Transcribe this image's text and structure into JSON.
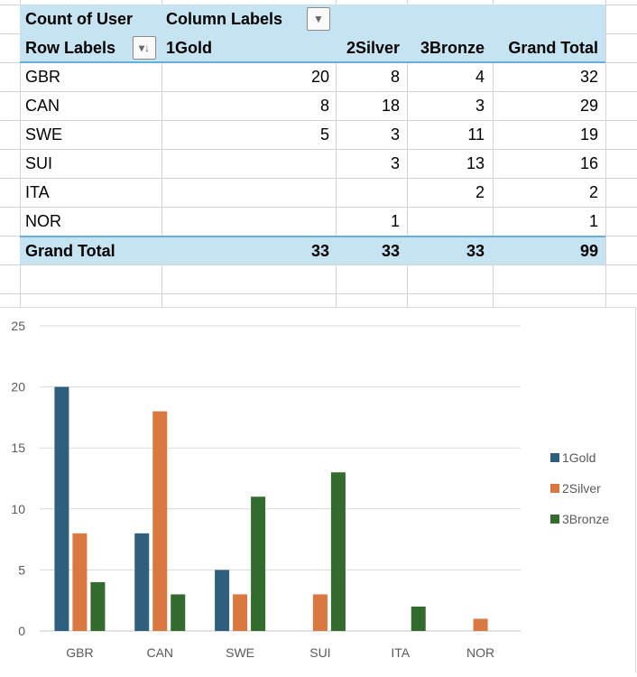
{
  "pivot": {
    "value_field": "Count of User",
    "column_labels": "Column Labels",
    "row_labels": "Row Labels",
    "columns": [
      "1Gold",
      "2Silver",
      "3Bronze",
      "Grand Total"
    ],
    "rows": [
      {
        "label": "GBR",
        "values": [
          "20",
          "8",
          "4",
          "32"
        ]
      },
      {
        "label": "CAN",
        "values": [
          "8",
          "18",
          "3",
          "29"
        ]
      },
      {
        "label": "SWE",
        "values": [
          "5",
          "3",
          "11",
          "19"
        ]
      },
      {
        "label": "SUI",
        "values": [
          "",
          "3",
          "13",
          "16"
        ]
      },
      {
        "label": "ITA",
        "values": [
          "",
          "",
          "2",
          "2"
        ]
      },
      {
        "label": "NOR",
        "values": [
          "",
          "1",
          "",
          "1"
        ]
      }
    ],
    "grand_total": {
      "label": "Grand Total",
      "values": [
        "33",
        "33",
        "33",
        "99"
      ]
    },
    "icons": {
      "column_filter": "dropdown-arrow-icon",
      "row_sort": "filter-sort-icon"
    }
  },
  "chart_data": {
    "type": "bar",
    "categories": [
      "GBR",
      "CAN",
      "SWE",
      "SUI",
      "ITA",
      "NOR"
    ],
    "series": [
      {
        "name": "1Gold",
        "color": "#2e5f7f",
        "values": [
          20,
          8,
          5,
          null,
          null,
          null
        ]
      },
      {
        "name": "2Silver",
        "color": "#d97941",
        "values": [
          8,
          18,
          3,
          3,
          null,
          1
        ]
      },
      {
        "name": "3Bronze",
        "color": "#336b2f",
        "values": [
          4,
          3,
          11,
          13,
          2,
          null
        ]
      }
    ],
    "ylim": [
      0,
      25
    ],
    "yticks": [
      0,
      5,
      10,
      15,
      20,
      25
    ],
    "grid": true,
    "legend": "right"
  }
}
